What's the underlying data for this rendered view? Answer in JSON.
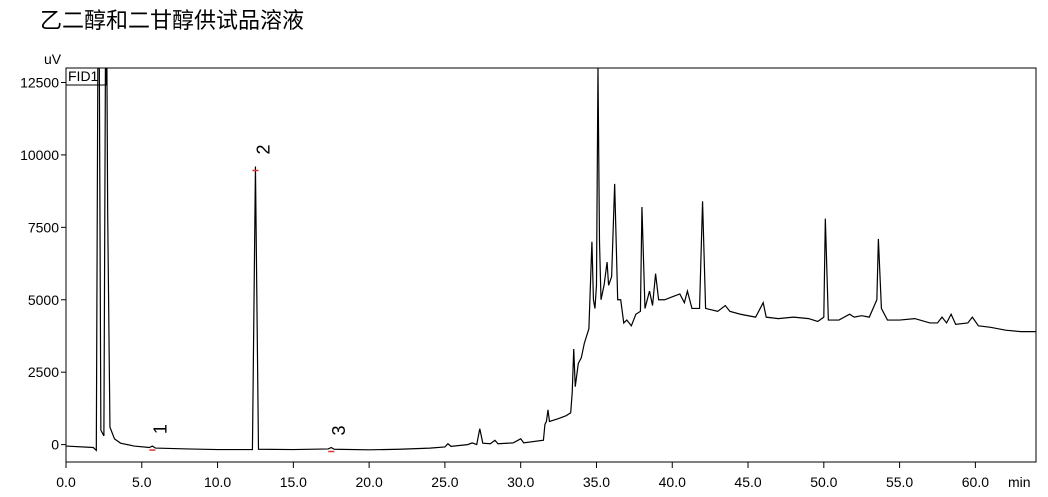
{
  "chart_data": {
    "type": "line",
    "title": "乙二醇和二甘醇供试品溶液",
    "y_label": "uV",
    "x_label": "min",
    "legend": "FID1",
    "xlim": [
      0,
      64
    ],
    "ylim": [
      -600,
      13000
    ],
    "xticks": [
      {
        "value": 0,
        "label": "0.0"
      },
      {
        "value": 5,
        "label": "5.0"
      },
      {
        "value": 10,
        "label": "10.0"
      },
      {
        "value": 15,
        "label": "15.0"
      },
      {
        "value": 20,
        "label": "20.0"
      },
      {
        "value": 25,
        "label": "25.0"
      },
      {
        "value": 30,
        "label": "30.0"
      },
      {
        "value": 35,
        "label": "35.0"
      },
      {
        "value": 40,
        "label": "40.0"
      },
      {
        "value": 45,
        "label": "45.0"
      },
      {
        "value": 50,
        "label": "50.0"
      },
      {
        "value": 55,
        "label": "55.0"
      },
      {
        "value": 60,
        "label": "60.0"
      }
    ],
    "yticks": [
      0,
      2500,
      5000,
      7500,
      10000,
      12500
    ],
    "color": "#000000",
    "peak_color": "#e03030",
    "peaks": [
      {
        "label": "1",
        "x": 5.7
      },
      {
        "label": "2",
        "x": 12.5
      },
      {
        "label": "3",
        "x": 17.5
      }
    ],
    "x": [
      0,
      1.8,
      2.0,
      2.1,
      2.2,
      2.3,
      2.5,
      2.6,
      2.7,
      2.75,
      2.9,
      3.2,
      3.6,
      4.5,
      5.5,
      5.7,
      5.9,
      8,
      10,
      12.3,
      12.5,
      12.7,
      15,
      17.3,
      17.5,
      17.7,
      20,
      22,
      24,
      25,
      25.2,
      25.4,
      26.5,
      26.8,
      27.1,
      27.3,
      27.5,
      28,
      28.3,
      28.5,
      29.5,
      30,
      30.2,
      31.5,
      31.6,
      31.7,
      31.8,
      31.9,
      32.5,
      33.0,
      33.3,
      33.4,
      33.5,
      33.6,
      33.8,
      34.0,
      34.2,
      34.5,
      34.7,
      34.8,
      34.9,
      35.0,
      35.1,
      35.2,
      35.3,
      35.5,
      35.7,
      35.8,
      36.0,
      36.2,
      36.4,
      36.6,
      36.8,
      37.0,
      37.3,
      37.6,
      37.9,
      38.0,
      38.2,
      38.5,
      38.7,
      38.9,
      39.1,
      39.5,
      40.0,
      40.5,
      40.8,
      41.0,
      41.3,
      41.8,
      42.0,
      42.2,
      43,
      43.5,
      43.8,
      44.5,
      45.5,
      46.0,
      46.2,
      47,
      48,
      49,
      49.6,
      50.0,
      50.1,
      50.3,
      51,
      51.7,
      52,
      52.5,
      53.0,
      53.5,
      53.6,
      53.8,
      54.2,
      55,
      56,
      57,
      57.5,
      57.8,
      58.1,
      58.4,
      58.7,
      59.5,
      59.8,
      60.2,
      61,
      62,
      63,
      64
    ],
    "values": [
      -50,
      -100,
      -200,
      13000,
      13000,
      500,
      300,
      13000,
      13000,
      8000,
      600,
      200,
      50,
      -50,
      -100,
      -50,
      -120,
      -150,
      -170,
      -170,
      9600,
      -160,
      -170,
      -150,
      -100,
      -160,
      -180,
      -160,
      -120,
      -80,
      30,
      -60,
      0,
      60,
      0,
      550,
      50,
      30,
      150,
      30,
      60,
      200,
      60,
      150,
      700,
      800,
      1200,
      800,
      900,
      1000,
      1100,
      1800,
      3300,
      2000,
      2800,
      3000,
      3500,
      4000,
      7000,
      5000,
      4700,
      5500,
      13000,
      7000,
      5000,
      5500,
      6300,
      5500,
      5800,
      9000,
      5000,
      5000,
      4200,
      4300,
      4100,
      4500,
      4600,
      8200,
      4700,
      5300,
      4800,
      5900,
      5000,
      5000,
      5100,
      5200,
      4900,
      5300,
      4700,
      4700,
      8400,
      4700,
      4600,
      4800,
      4600,
      4500,
      4400,
      4900,
      4400,
      4350,
      4400,
      4350,
      4250,
      4400,
      7800,
      4300,
      4300,
      4500,
      4400,
      4450,
      4400,
      5000,
      7100,
      4700,
      4300,
      4300,
      4350,
      4200,
      4200,
      4400,
      4200,
      4500,
      4150,
      4200,
      4400,
      4100,
      4050,
      3950,
      3900,
      3900
    ]
  }
}
